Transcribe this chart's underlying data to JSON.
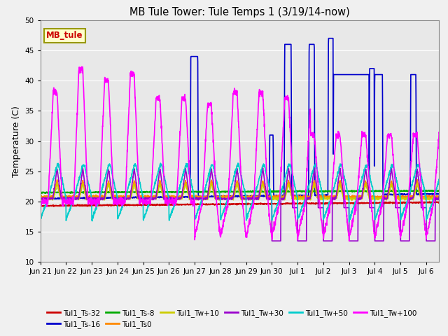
{
  "title": "MB Tule Tower: Tule Temps 1 (3/19/14-now)",
  "ylabel": "Temperature (C)",
  "ylim": [
    10,
    50
  ],
  "yticks": [
    10,
    15,
    20,
    25,
    30,
    35,
    40,
    45,
    50
  ],
  "bg_color": "#e8e8e8",
  "legend_box_label": "MB_tule",
  "legend_box_facecolor": "#ffffcc",
  "legend_box_edgecolor": "#999900",
  "legend_box_textcolor": "#cc0000",
  "series": [
    {
      "name": "Tul1_Ts-32",
      "color": "#cc0000",
      "lw": 1.2
    },
    {
      "name": "Tul1_Ts-16",
      "color": "#0000cc",
      "lw": 1.2
    },
    {
      "name": "Tul1_Ts-8",
      "color": "#00aa00",
      "lw": 1.2
    },
    {
      "name": "Tul1_Ts0",
      "color": "#ff8800",
      "lw": 1.2
    },
    {
      "name": "Tul1_Tw+10",
      "color": "#cccc00",
      "lw": 1.2
    },
    {
      "name": "Tul1_Tw+30",
      "color": "#9900cc",
      "lw": 1.2
    },
    {
      "name": "Tul1_Tw+50",
      "color": "#00cccc",
      "lw": 1.2
    },
    {
      "name": "Tul1_Tw+100",
      "color": "#ff00ff",
      "lw": 1.2
    }
  ],
  "xtick_labels": [
    "Jun 21",
    "Jun 22",
    "Jun 23",
    "Jun 24",
    "Jun 25",
    "Jun 26",
    "Jun 27",
    "Jun 28",
    "Jun 29",
    "Jun 30",
    "Jul 1",
    "Jul 2",
    "Jul 3",
    "Jul 4",
    "Jul 5",
    "Jul 6"
  ],
  "n_days": 16
}
